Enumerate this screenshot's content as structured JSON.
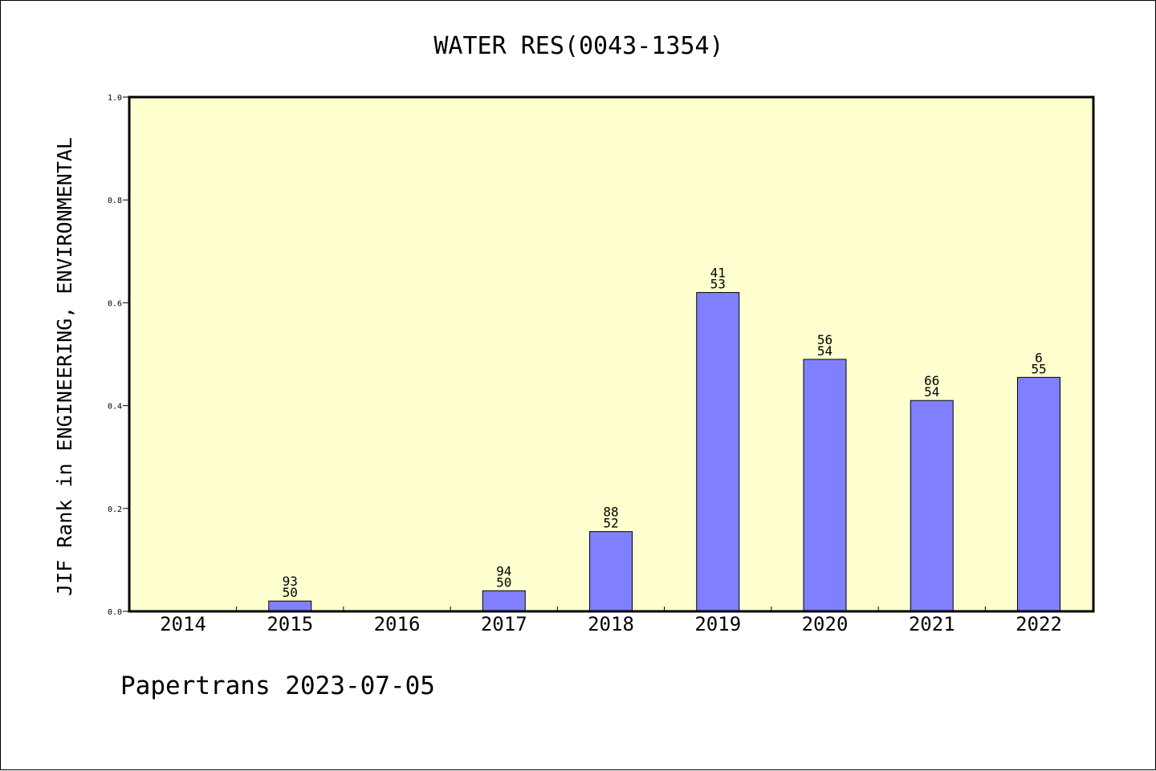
{
  "chart_data": {
    "type": "bar",
    "title": "WATER RES(0043-1354)",
    "xlabel": "",
    "ylabel": "JIF Rank in ENGINEERING, ENVIRONMENTAL",
    "categories": [
      "2014",
      "2015",
      "2016",
      "2017",
      "2018",
      "2019",
      "2020",
      "2021",
      "2022"
    ],
    "values": [
      null,
      0.02,
      null,
      0.04,
      0.155,
      0.62,
      0.49,
      0.41,
      0.455
    ],
    "bar_labels": [
      null,
      [
        "93",
        "50"
      ],
      null,
      [
        "94",
        "50"
      ],
      [
        "88",
        "52"
      ],
      [
        "41",
        "53"
      ],
      [
        "56",
        "54"
      ],
      [
        "66",
        "54"
      ],
      [
        "6",
        "55"
      ]
    ],
    "ylim": [
      0,
      1.0
    ],
    "yticks": [
      "0.0",
      "0.2",
      "0.4",
      "0.6",
      "0.8",
      "1.0"
    ],
    "grid": false,
    "legend": "none",
    "colors": {
      "plot_background": "#ffffd0",
      "bar_fill": "#8080ff",
      "bar_stroke": "#000000"
    }
  },
  "footer": "Papertrans 2023-07-05"
}
